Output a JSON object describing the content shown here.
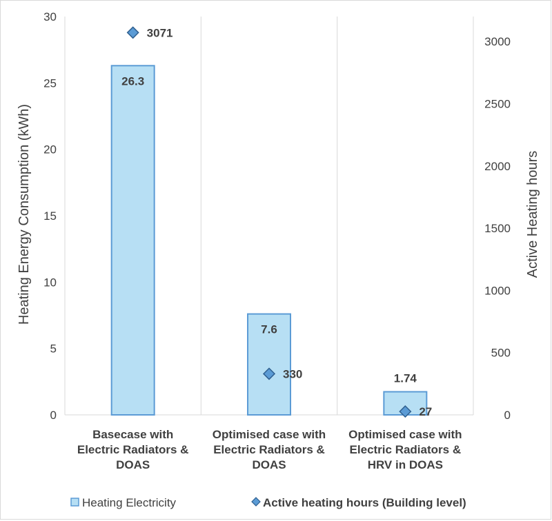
{
  "chart_data": {
    "type": "bar",
    "categories": [
      [
        "Basecase with",
        "Electric Radiators &",
        "DOAS"
      ],
      [
        "Optimised case with",
        "Electric Radiators &",
        "DOAS"
      ],
      [
        "Optimised case with",
        "Electric Radiators &",
        "HRV in DOAS"
      ]
    ],
    "series": [
      {
        "name": "Heating Electricity",
        "type": "bar",
        "axis": "left",
        "values": [
          26.3,
          7.6,
          1.74
        ],
        "labels": [
          "26.3",
          "7.6",
          "1.74"
        ],
        "color": "#b7dff4",
        "border": "#5b9bd5"
      },
      {
        "name": "Active heating hours (Building level)",
        "type": "scatter",
        "axis": "right",
        "values": [
          3071,
          330,
          27
        ],
        "labels": [
          "3071",
          "330",
          "27"
        ],
        "color": "#5b9bd5",
        "border": "#2f5f8f"
      }
    ],
    "ylabel": "Heating Energy Consumption (kWh)",
    "y2label": "Active Heating hours",
    "ylim": [
      0,
      30
    ],
    "y2lim": [
      0,
      3200
    ],
    "yticks": [
      "0",
      "5",
      "10",
      "15",
      "20",
      "25",
      "30"
    ],
    "y2ticks": [
      "0",
      "500",
      "1000",
      "1500",
      "2000",
      "2500",
      "3000"
    ],
    "grid": "vertical",
    "legend": "bottom"
  }
}
